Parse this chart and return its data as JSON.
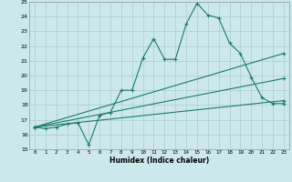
{
  "title": "",
  "xlabel": "Humidex (Indice chaleur)",
  "ylabel": "",
  "xlim": [
    -0.5,
    23.5
  ],
  "ylim": [
    15,
    25
  ],
  "xticks": [
    0,
    1,
    2,
    3,
    4,
    5,
    6,
    7,
    8,
    9,
    10,
    11,
    12,
    13,
    14,
    15,
    16,
    17,
    18,
    19,
    20,
    21,
    22,
    23
  ],
  "yticks": [
    15,
    16,
    17,
    18,
    19,
    20,
    21,
    22,
    23,
    24,
    25
  ],
  "background_color": "#cce8ec",
  "grid_color": "#aacccc",
  "line_color": "#1a7a6e",
  "series": [
    {
      "x": [
        0,
        1,
        2,
        3,
        4,
        5,
        6,
        7,
        8,
        9,
        10,
        11,
        12,
        13,
        14,
        15,
        16,
        17,
        18,
        19,
        20,
        21,
        22,
        23
      ],
      "y": [
        16.5,
        16.4,
        16.5,
        16.7,
        16.8,
        15.3,
        17.3,
        17.5,
        19.0,
        19.0,
        21.2,
        22.5,
        21.1,
        21.1,
        23.5,
        24.9,
        24.1,
        23.9,
        22.2,
        21.5,
        19.9,
        18.5,
        18.1,
        18.1
      ]
    },
    {
      "x": [
        0,
        23
      ],
      "y": [
        16.5,
        21.5
      ]
    },
    {
      "x": [
        0,
        23
      ],
      "y": [
        16.5,
        19.8
      ]
    },
    {
      "x": [
        0,
        23
      ],
      "y": [
        16.5,
        18.3
      ]
    }
  ]
}
